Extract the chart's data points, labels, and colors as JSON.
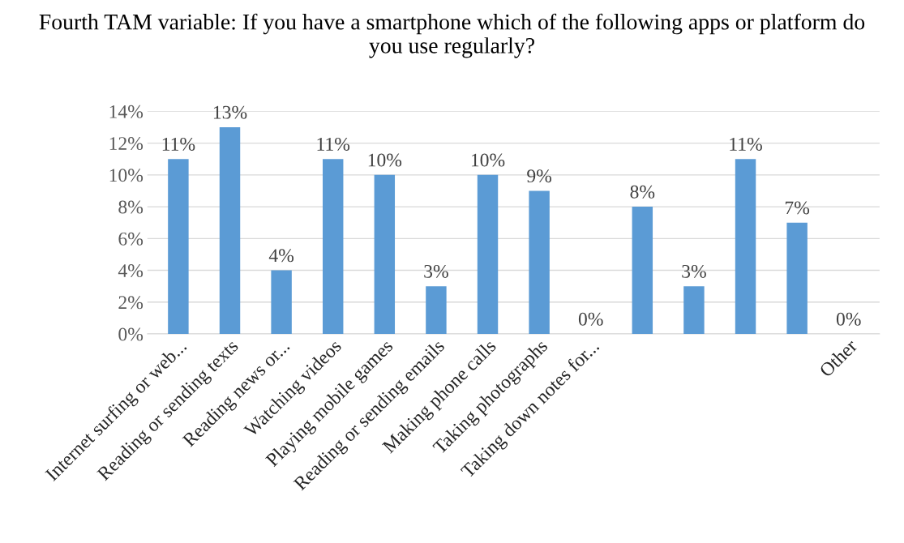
{
  "chart_data": {
    "type": "bar",
    "title": "Fourth TAM variable: If you have a smartphone which of the following apps or platform do you use regularly?",
    "categories": [
      "Internet surfing or web...",
      "Reading or sending texts",
      "Reading news or...",
      "Watching videos",
      "Playing mobile games",
      "Reading or sending emails",
      "Making phone calls",
      "Taking photographs",
      "Taking down notes for...",
      null,
      null,
      null,
      null,
      "Other"
    ],
    "values": [
      11,
      13,
      4,
      11,
      10,
      3,
      10,
      9,
      0,
      8,
      3,
      11,
      7,
      0
    ],
    "value_labels": [
      "11%",
      "13%",
      "4%",
      "11%",
      "10%",
      "3%",
      "10%",
      "9%",
      "0%",
      "8%",
      "3%",
      "11%",
      "7%",
      "0%"
    ],
    "color": "#5b9bd5",
    "ylim": [
      0,
      14
    ],
    "yticks": [
      {
        "value": 0,
        "label": "0%"
      },
      {
        "value": 2,
        "label": "2%"
      },
      {
        "value": 4,
        "label": "4%"
      },
      {
        "value": 6,
        "label": "6%"
      },
      {
        "value": 8,
        "label": "8%"
      },
      {
        "value": 10,
        "label": "10%"
      },
      {
        "value": 12,
        "label": "12%"
      },
      {
        "value": 14,
        "label": "14%"
      }
    ],
    "grid": "y",
    "legend": false
  }
}
